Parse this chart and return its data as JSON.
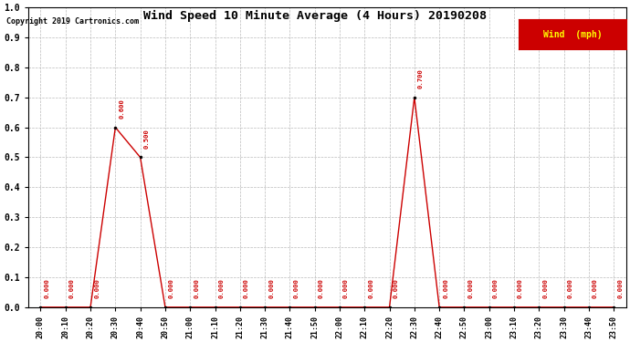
{
  "title": "Wind Speed 10 Minute Average (4 Hours) 20190208",
  "copyright": "Copyright 2019 Cartronics.com",
  "legend_label": "Wind  (mph)",
  "line_color": "#cc0000",
  "legend_bg": "#cc0000",
  "legend_text_color": "#ffff00",
  "background_color": "#ffffff",
  "grid_color": "#bbbbbb",
  "ylim": [
    0.0,
    1.0
  ],
  "yticks": [
    0.0,
    0.1,
    0.2,
    0.3,
    0.4,
    0.5,
    0.6,
    0.7,
    0.8,
    0.9,
    1.0
  ],
  "time_labels": [
    "20:00",
    "20:10",
    "20:20",
    "20:30",
    "20:40",
    "20:50",
    "21:00",
    "21:10",
    "21:20",
    "21:30",
    "21:40",
    "21:50",
    "22:00",
    "22:10",
    "22:20",
    "22:30",
    "22:40",
    "22:50",
    "23:00",
    "23:10",
    "23:20",
    "23:30",
    "23:40",
    "23:50"
  ],
  "values": [
    0.0,
    0.0,
    0.0,
    0.6,
    0.5,
    0.0,
    0.0,
    0.0,
    0.0,
    0.0,
    0.0,
    0.0,
    0.0,
    0.0,
    0.0,
    0.7,
    0.0,
    0.0,
    0.0,
    0.0,
    0.0,
    0.0,
    0.0,
    0.0
  ]
}
